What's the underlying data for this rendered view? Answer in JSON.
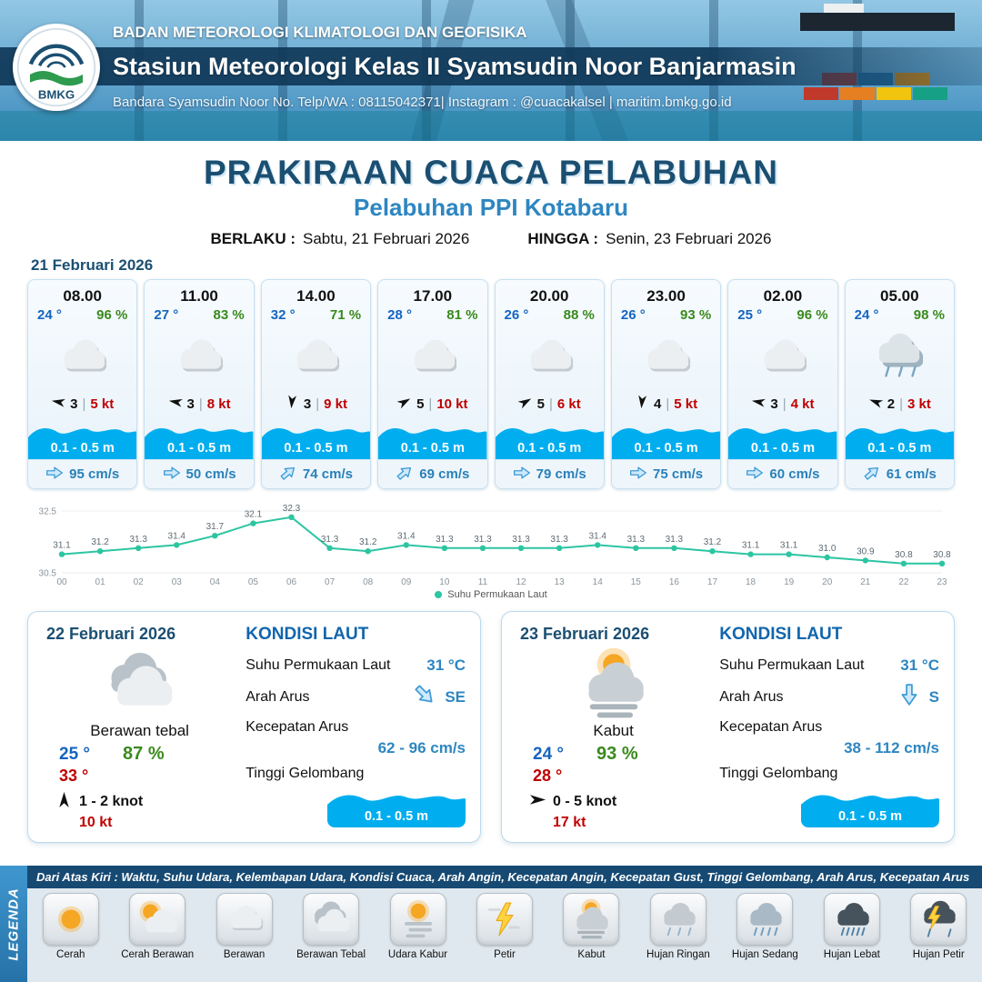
{
  "header": {
    "logo_label": "BMKG",
    "agency": "BADAN METEOROLOGI KLIMATOLOGI DAN GEOFISIKA",
    "station": "Stasiun Meteorologi Kelas II Syamsudin Noor Banjarmasin",
    "contact": "Bandara Syamsudin Noor No. Telp/WA : 08115042371| Instagram : @cuacakalsel | maritim.bmkg.go.id"
  },
  "title": {
    "main": "PRAKIRAAN CUACA PELABUHAN",
    "subtitle": "Pelabuhan PPI Kotabaru",
    "berlaku_label": "BERLAKU :",
    "berlaku_value": "Sabtu, 21 Februari 2026",
    "hingga_label": "HINGGA :",
    "hingga_value": "Senin, 23 Februari 2026"
  },
  "forecast_date": "21 Februari 2026",
  "separator": "|",
  "forecast_cards": [
    {
      "time": "08.00",
      "temp": "24 °",
      "humidity": "96 %",
      "icon": "cloud",
      "wind_value": "3",
      "wind_speed": "5 kt",
      "wind_rot": 190,
      "wave": "0.1 - 0.5 m",
      "current": "95 cm/s",
      "current_rot": 0
    },
    {
      "time": "11.00",
      "temp": "27 °",
      "humidity": "83 %",
      "icon": "cloud",
      "wind_value": "3",
      "wind_speed": "8 kt",
      "wind_rot": 190,
      "wave": "0.1 - 0.5 m",
      "current": "50 cm/s",
      "current_rot": 0
    },
    {
      "time": "14.00",
      "temp": "32 °",
      "humidity": "71 %",
      "icon": "cloud",
      "wind_value": "3",
      "wind_speed": "9 kt",
      "wind_rot": 95,
      "wave": "0.1 - 0.5 m",
      "current": "74 cm/s",
      "current_rot": -40
    },
    {
      "time": "17.00",
      "temp": "28 °",
      "humidity": "81 %",
      "icon": "cloud",
      "wind_value": "5",
      "wind_speed": "10 kt",
      "wind_rot": 330,
      "wave": "0.1 - 0.5 m",
      "current": "69 cm/s",
      "current_rot": -40
    },
    {
      "time": "20.00",
      "temp": "26 °",
      "humidity": "88 %",
      "icon": "cloud",
      "wind_value": "5",
      "wind_speed": "6 kt",
      "wind_rot": 330,
      "wave": "0.1 - 0.5 m",
      "current": "79 cm/s",
      "current_rot": 0
    },
    {
      "time": "23.00",
      "temp": "26 °",
      "humidity": "93 %",
      "icon": "cloud",
      "wind_value": "4",
      "wind_speed": "5 kt",
      "wind_rot": 95,
      "wave": "0.1 - 0.5 m",
      "current": "75 cm/s",
      "current_rot": 0
    },
    {
      "time": "02.00",
      "temp": "25 °",
      "humidity": "96 %",
      "icon": "cloud",
      "wind_value": "3",
      "wind_speed": "4 kt",
      "wind_rot": 190,
      "wave": "0.1 - 0.5 m",
      "current": "60 cm/s",
      "current_rot": 0
    },
    {
      "time": "05.00",
      "temp": "24 °",
      "humidity": "98 %",
      "icon": "rain",
      "wind_value": "2",
      "wind_speed": "3 kt",
      "wind_rot": 200,
      "wave": "0.1 - 0.5 m",
      "current": "61 cm/s",
      "current_rot": -40
    }
  ],
  "chart_data": {
    "type": "line",
    "title": "Suhu Permukaan Laut",
    "x": [
      "00",
      "01",
      "02",
      "03",
      "04",
      "05",
      "06",
      "07",
      "08",
      "09",
      "10",
      "11",
      "12",
      "13",
      "14",
      "15",
      "16",
      "17",
      "18",
      "19",
      "20",
      "21",
      "22",
      "23"
    ],
    "series": [
      {
        "name": "Suhu Permukaan Laut",
        "values": [
          31.1,
          31.2,
          31.3,
          31.4,
          31.7,
          32.1,
          32.3,
          31.3,
          31.2,
          31.4,
          31.3,
          31.3,
          31.3,
          31.3,
          31.4,
          31.3,
          31.3,
          31.2,
          31.1,
          31.1,
          31.0,
          30.9,
          30.8,
          30.8
        ]
      }
    ],
    "ylim": [
      30.5,
      32.5
    ],
    "yticks": [
      30.5,
      32.5
    ],
    "line_color": "#2cc5a2",
    "legend_position": "bottom",
    "legend_label": "Suhu Permukaan Laut"
  },
  "days": [
    {
      "date": "22 Februari 2026",
      "icon": "cloud-thick",
      "condition": "Berawan tebal",
      "temp_min": "25 °",
      "humidity": "87 %",
      "temp_max": "33 °",
      "wind": "1 - 2 knot",
      "wind_rot": -90,
      "gust": "10 kt",
      "sea": {
        "title": "KONDISI LAUT",
        "sst_label": "Suhu Permukaan Laut",
        "sst": "31 °C",
        "dir_label": "Arah Arus",
        "dir": "SE",
        "dir_rot": 45,
        "speed_label": "Kecepatan Arus",
        "speed": "62 - 96 cm/s",
        "wave_label": "Tinggi Gelombang",
        "wave": "0.1 - 0.5 m"
      }
    },
    {
      "date": "23 Februari 2026",
      "icon": "fog",
      "condition": "Kabut",
      "temp_min": "24 °",
      "humidity": "93 %",
      "temp_max": "28 °",
      "wind": "0  - 5 knot",
      "wind_rot": 0,
      "gust": "17 kt",
      "sea": {
        "title": "KONDISI LAUT",
        "sst_label": "Suhu Permukaan Laut",
        "sst": "31 °C",
        "dir_label": "Arah Arus",
        "dir": "S",
        "dir_rot": 90,
        "speed_label": "Kecepatan Arus",
        "speed": "38 - 112 cm/s",
        "wave_label": "Tinggi Gelombang",
        "wave": "0.1 - 0.5 m"
      }
    }
  ],
  "legend": {
    "vertical_label": "LEGENDA",
    "note": "Dari Atas Kiri : Waktu, Suhu Udara, Kelembapan Udara, Kondisi Cuaca, Arah Angin, Kecepatan Angin, Kecepatan Gust, Tinggi Gelombang, Arah Arus, Kecepatan Arus",
    "items": [
      {
        "label": "Cerah",
        "icon": "sun"
      },
      {
        "label": "Cerah Berawan",
        "icon": "sun-cloud"
      },
      {
        "label": "Berawan",
        "icon": "cloud"
      },
      {
        "label": "Berawan Tebal",
        "icon": "cloud-thick"
      },
      {
        "label": "Udara Kabur",
        "icon": "haze"
      },
      {
        "label": "Petir",
        "icon": "bolt"
      },
      {
        "label": "Kabut",
        "icon": "fog"
      },
      {
        "label": "Hujan Ringan",
        "icon": "rain-light"
      },
      {
        "label": "Hujan Sedang",
        "icon": "rain-medium"
      },
      {
        "label": "Hujan Lebat",
        "icon": "rain-heavy"
      },
      {
        "label": "Hujan Petir",
        "icon": "storm"
      }
    ]
  },
  "colors": {
    "header_band": "#103858",
    "accent": "#1b4f72",
    "subtitle_blue": "#2e86c1",
    "temp_blue": "#1565c0",
    "humidity_green": "#3a8a1d",
    "alert_red": "#c00000",
    "wave_blue": "#00aeef",
    "current_blue": "#2980b9",
    "chart_teal": "#2cc5a2",
    "legend_strip": "#2e86c1",
    "legend_bar": "#174a73"
  }
}
